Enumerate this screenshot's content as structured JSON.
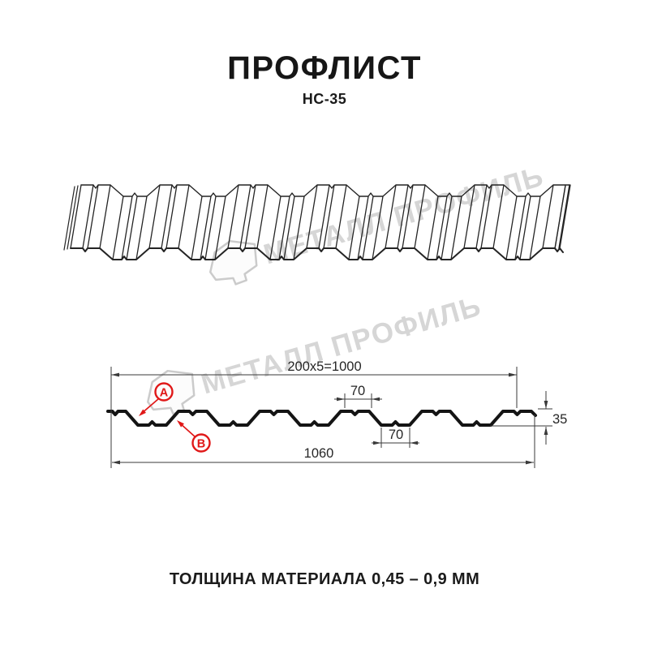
{
  "header": {
    "title": "ПРОФЛИСТ",
    "subtitle": "НС-35"
  },
  "watermark": {
    "text": "МЕТАЛЛ ПРОФИЛЬ"
  },
  "cross_section": {
    "dim_module_span": "200x5=1000",
    "dim_crest_width": "70",
    "dim_valley_width": "70",
    "dim_height": "35",
    "dim_total_width": "1060",
    "marker_a": "A",
    "marker_b": "B"
  },
  "footer": {
    "text": "ТОЛЩИНА МАТЕРИАЛА 0,45 – 0,9 ММ"
  },
  "colors": {
    "accent": "#e01818",
    "watermark": "#d6d6d6",
    "profile_line": "#141414",
    "dim_line": "#3a3a3a"
  }
}
